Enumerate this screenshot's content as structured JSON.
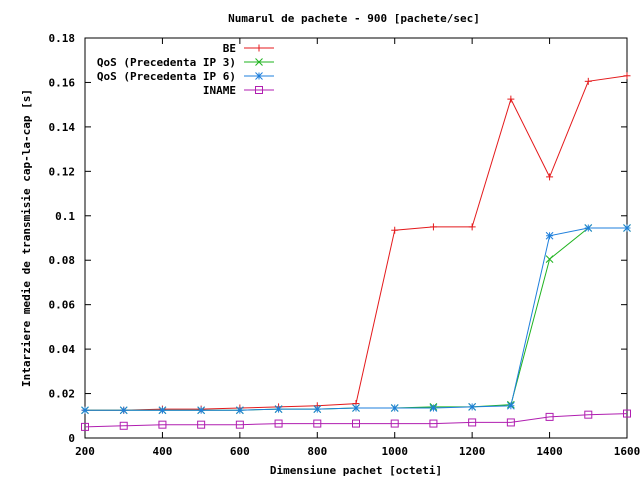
{
  "chart_data": {
    "type": "line",
    "title": "Numarul de pachete - 900 [pachete/sec]",
    "xlabel": "Dimensiune pachet [octeti]",
    "ylabel": "Intarziere medie de transmisie cap-la-cap [s]",
    "xlim": [
      200,
      1600
    ],
    "ylim": [
      0,
      0.18
    ],
    "xticks": [
      "200",
      "400",
      "600",
      "800",
      "1000",
      "1200",
      "1400",
      "1600"
    ],
    "yticks": [
      "0",
      "0.02",
      "0.04",
      "0.06",
      "0.08",
      "0.1",
      "0.12",
      "0.14",
      "0.16",
      "0.18"
    ],
    "grid": false,
    "legend_position": "top-right",
    "series": [
      {
        "name": "BE",
        "color": "#e41a1c",
        "marker": "plus",
        "x": [
          200,
          300,
          400,
          500,
          600,
          700,
          800,
          900,
          1000,
          1100,
          1200,
          1300,
          1400,
          1500,
          1600
        ],
        "y": [
          0.0125,
          0.0125,
          0.013,
          0.013,
          0.0135,
          0.014,
          0.0145,
          0.0155,
          0.0935,
          0.095,
          0.095,
          0.1525,
          0.1175,
          0.1605,
          0.163
        ]
      },
      {
        "name": "QoS (Precedenta IP 3)",
        "color": "#1eb31e",
        "marker": "cross",
        "x": [
          200,
          300,
          400,
          500,
          600,
          700,
          800,
          900,
          1000,
          1100,
          1200,
          1300,
          1400,
          1500,
          1600
        ],
        "y": [
          0.0125,
          0.0125,
          0.0125,
          0.0125,
          0.0125,
          0.013,
          0.013,
          0.0135,
          0.0135,
          0.014,
          0.014,
          0.015,
          0.0805,
          0.0945,
          0.0945
        ]
      },
      {
        "name": "QoS (Precedenta IP 6)",
        "color": "#1e7fdc",
        "marker": "star",
        "x": [
          200,
          300,
          400,
          500,
          600,
          700,
          800,
          900,
          1000,
          1100,
          1200,
          1300,
          1400,
          1500,
          1600
        ],
        "y": [
          0.0125,
          0.0125,
          0.0125,
          0.0125,
          0.0125,
          0.013,
          0.013,
          0.0135,
          0.0135,
          0.0135,
          0.014,
          0.0145,
          0.091,
          0.0945,
          0.0945
        ]
      },
      {
        "name": "INAME",
        "color": "#b01eb0",
        "marker": "square",
        "x": [
          200,
          300,
          400,
          500,
          600,
          700,
          800,
          900,
          1000,
          1100,
          1200,
          1300,
          1400,
          1500,
          1600
        ],
        "y": [
          0.005,
          0.0055,
          0.006,
          0.006,
          0.006,
          0.0065,
          0.0065,
          0.0065,
          0.0065,
          0.0065,
          0.007,
          0.007,
          0.0095,
          0.0105,
          0.011
        ]
      }
    ]
  }
}
